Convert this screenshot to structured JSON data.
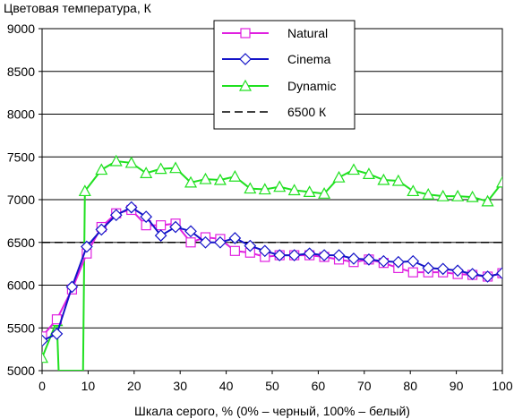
{
  "chart_data": {
    "type": "line",
    "title": "",
    "ylabel": "Цветовая температура, К",
    "xlabel": "Шкала серого, % (0% – черный, 100% – белый)",
    "xlim": [
      0,
      100
    ],
    "ylim": [
      5000,
      9000
    ],
    "xticks": [
      0,
      10,
      20,
      30,
      40,
      50,
      60,
      70,
      80,
      90,
      100
    ],
    "yticks": [
      5000,
      5500,
      6000,
      6500,
      7000,
      7500,
      8000,
      8500,
      9000
    ],
    "grid": "horizontal",
    "legend_position": "top-center",
    "series": [
      {
        "name": "Natural",
        "color": "#e020e0",
        "marker": "square",
        "x": [
          0,
          3.2,
          6.5,
          9.7,
          12.9,
          16.1,
          19.4,
          22.6,
          25.8,
          29.0,
          32.3,
          35.5,
          38.7,
          41.9,
          45.2,
          48.4,
          51.6,
          54.8,
          58.1,
          61.3,
          64.5,
          67.7,
          71.0,
          74.2,
          77.4,
          80.6,
          83.9,
          87.1,
          90.3,
          93.5,
          96.8,
          100
        ],
        "y": [
          5400,
          5600,
          5950,
          6370,
          6680,
          6840,
          6880,
          6700,
          6700,
          6720,
          6500,
          6560,
          6540,
          6400,
          6380,
          6330,
          6350,
          6350,
          6350,
          6330,
          6300,
          6270,
          6300,
          6260,
          6200,
          6150,
          6150,
          6150,
          6130,
          6120,
          6100,
          6140
        ]
      },
      {
        "name": "Cinema",
        "color": "#1414c8",
        "marker": "diamond",
        "x": [
          0,
          3.2,
          6.5,
          9.7,
          12.9,
          16.1,
          19.4,
          22.6,
          25.8,
          29.0,
          32.3,
          35.5,
          38.7,
          41.9,
          45.2,
          48.4,
          51.6,
          54.8,
          58.1,
          61.3,
          64.5,
          67.7,
          71.0,
          74.2,
          77.4,
          80.6,
          83.9,
          87.1,
          90.3,
          93.5,
          96.8,
          100
        ],
        "y": [
          5350,
          5430,
          5980,
          6450,
          6650,
          6820,
          6910,
          6800,
          6580,
          6680,
          6630,
          6500,
          6500,
          6550,
          6460,
          6400,
          6350,
          6350,
          6370,
          6350,
          6350,
          6310,
          6300,
          6280,
          6270,
          6280,
          6200,
          6190,
          6170,
          6130,
          6100,
          6140
        ]
      },
      {
        "name": "Dynamic",
        "color": "#20e020",
        "marker": "triangle",
        "x": [
          0,
          3.2,
          3.6,
          8.9,
          9.3,
          12.9,
          16.1,
          19.4,
          22.6,
          25.8,
          29.0,
          32.3,
          35.5,
          38.7,
          41.9,
          45.2,
          48.4,
          51.6,
          54.8,
          58.1,
          61.3,
          64.5,
          67.7,
          71.0,
          74.2,
          77.4,
          80.6,
          83.9,
          87.1,
          90.3,
          93.5,
          96.8,
          100
        ],
        "y": [
          5150,
          5580,
          5000,
          5000,
          7100,
          7350,
          7450,
          7430,
          7310,
          7360,
          7370,
          7200,
          7240,
          7230,
          7270,
          7130,
          7120,
          7150,
          7110,
          7090,
          7070,
          7260,
          7350,
          7300,
          7230,
          7220,
          7100,
          7060,
          7040,
          7040,
          7030,
          6980,
          7200
        ],
        "marker_points": [
          0,
          1,
          4,
          5,
          6,
          7,
          8,
          9,
          10,
          11,
          12,
          13,
          14,
          15,
          16,
          17,
          18,
          19,
          20,
          21,
          22,
          23,
          24,
          25,
          26,
          27,
          28,
          29,
          30,
          31,
          32
        ]
      },
      {
        "name": "6500 К",
        "color": "#000000",
        "style": "dashed",
        "x": [
          0,
          100
        ],
        "y": [
          6500,
          6500
        ]
      }
    ]
  }
}
